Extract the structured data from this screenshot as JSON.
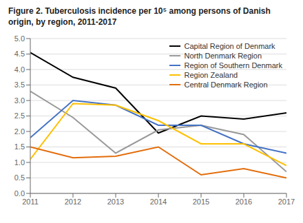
{
  "chart_data": {
    "type": "line",
    "title": "Figure 2. Tuberculosis incidence per 10⁵ among persons of Danish origin, by region, 2011-2017",
    "x": [
      2011,
      2012,
      2013,
      2014,
      2015,
      2016,
      2017
    ],
    "series": [
      {
        "name": "Capital Region of Denmark",
        "color": "#000000",
        "values": [
          4.55,
          3.75,
          3.4,
          1.95,
          2.5,
          2.4,
          2.6
        ]
      },
      {
        "name": "North Denmark Region",
        "color": "#999999",
        "values": [
          3.3,
          2.45,
          1.3,
          2.05,
          2.2,
          1.9,
          0.7
        ]
      },
      {
        "name": "Region of Southern Denmark",
        "color": "#4472c4",
        "values": [
          1.8,
          3.0,
          2.85,
          2.2,
          2.2,
          1.6,
          1.3
        ]
      },
      {
        "name": "Region Zealand",
        "color": "#ffc000",
        "values": [
          1.1,
          2.9,
          2.85,
          2.35,
          1.6,
          1.6,
          0.9
        ]
      },
      {
        "name": "Central Denmark Region",
        "color": "#e36c0a",
        "values": [
          1.5,
          1.15,
          1.2,
          1.5,
          0.6,
          0.8,
          0.5
        ]
      }
    ],
    "xlim": [
      2011,
      2017
    ],
    "xticks": [
      2011,
      2012,
      2013,
      2014,
      2015,
      2016,
      2017
    ],
    "ylim": [
      0.0,
      5.0
    ],
    "yticks": [
      {
        "value": 0,
        "label": "0.0"
      },
      0.5,
      {
        "value": 1,
        "label": "1.0"
      },
      1.5,
      {
        "value": 2,
        "label": "2.0"
      },
      2.5,
      {
        "value": 3,
        "label": "3.0"
      },
      3.5,
      {
        "value": 4,
        "label": "4.0"
      },
      4.5,
      {
        "value": 5,
        "label": "5.0"
      }
    ],
    "grid": true,
    "legend": "upper right"
  }
}
